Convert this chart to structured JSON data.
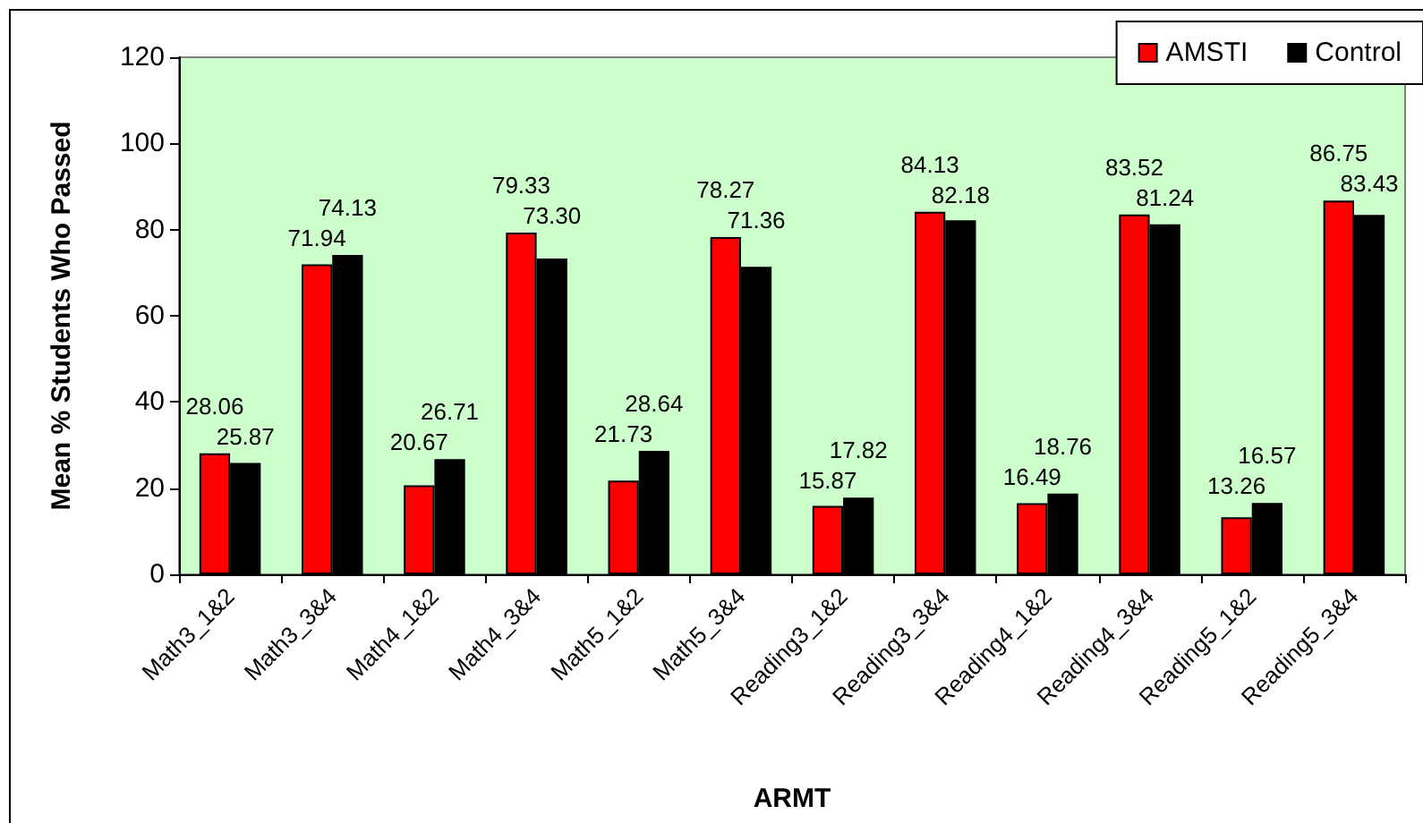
{
  "chart_data": {
    "type": "bar",
    "xlabel": "ARMT",
    "ylabel": "Mean % Students Who Passed",
    "categories": [
      "Math3_1&2",
      "Math3_3&4",
      "Math4_1&2",
      "Math4_3&4",
      "Math5_1&2",
      "Math5_3&4",
      "Reading3_1&2",
      "Reading3_3&4",
      "Reading4_1&2",
      "Reading4_3&4",
      "Reading5_1&2",
      "Reading5_3&4"
    ],
    "series": [
      {
        "name": "AMSTI",
        "color": "#ff0000",
        "values": [
          28.06,
          71.94,
          20.67,
          79.33,
          21.73,
          78.27,
          15.87,
          84.13,
          16.49,
          83.52,
          13.26,
          86.75
        ],
        "value_labels": [
          "28.06",
          "71.94",
          "20.67",
          "79.33",
          "21.73",
          "78.27",
          "15.87",
          "84.13",
          "16.49",
          "83.52",
          "13.26",
          "86.75"
        ]
      },
      {
        "name": "Control",
        "color": "#000000",
        "values": [
          25.87,
          74.13,
          26.71,
          73.3,
          28.64,
          71.36,
          17.82,
          82.18,
          18.76,
          81.24,
          16.57,
          83.43
        ],
        "value_labels": [
          "25.87",
          "74.13",
          "26.71",
          "73.30",
          "28.64",
          "71.36",
          "17.82",
          "82.18",
          "18.76",
          "81.24",
          "16.57",
          "83.43"
        ]
      }
    ],
    "ylim": [
      0,
      120
    ],
    "yticks": [
      0,
      20,
      40,
      60,
      80,
      100,
      120
    ],
    "legend": "top right"
  }
}
